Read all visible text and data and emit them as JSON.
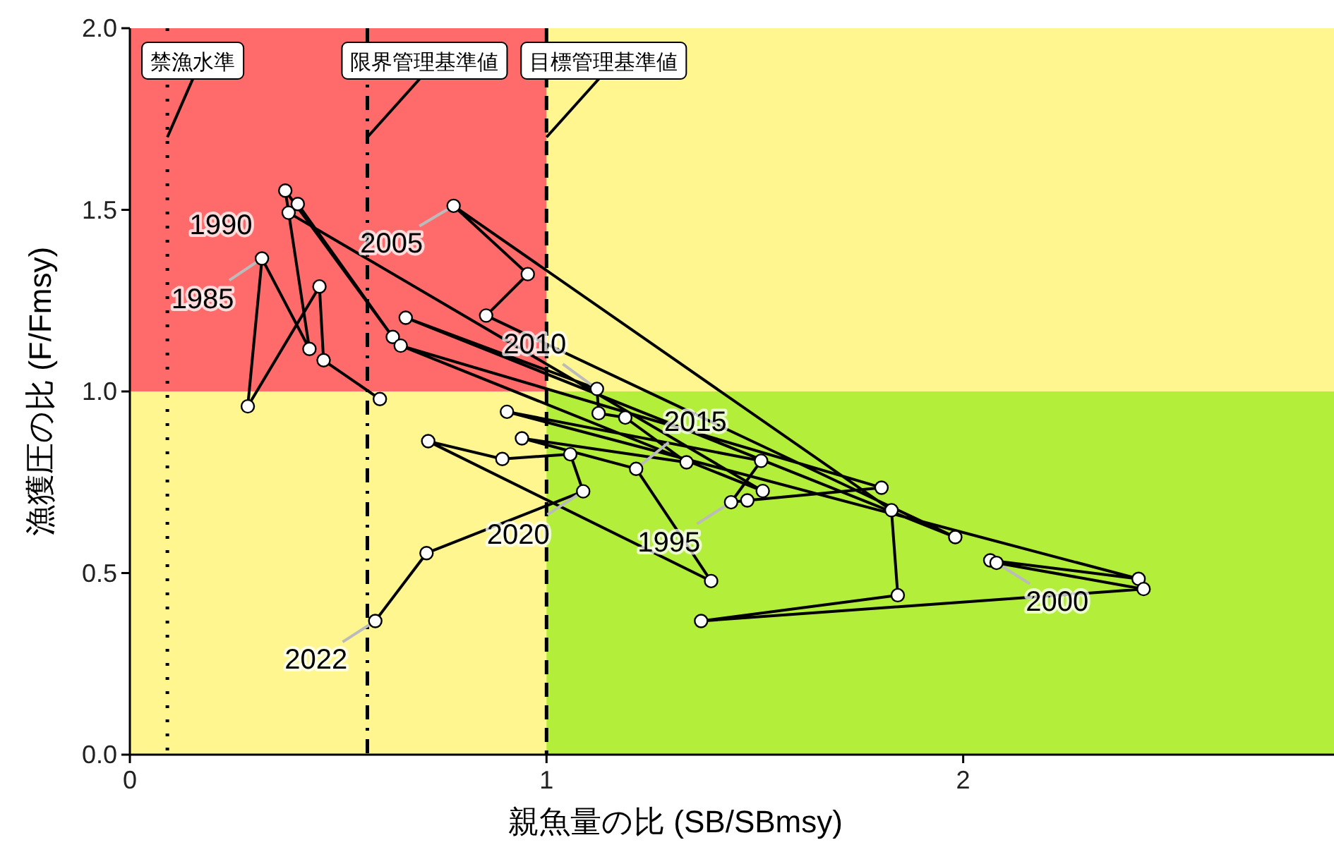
{
  "chart_data": {
    "type": "line",
    "xlabel": "親魚量の比 (SB/SBmsy)",
    "ylabel": "漁獲圧の比 (F/Fmsy)",
    "xlim": [
      0,
      2.89
    ],
    "xticks": [
      0,
      1,
      2
    ],
    "ylim": [
      0,
      2
    ],
    "yticks": [
      {
        "value": 0,
        "label": "0.0"
      },
      {
        "value": 0.5,
        "label": "0.5"
      },
      {
        "value": 1,
        "label": "1.0"
      },
      {
        "value": 1.5,
        "label": "1.5"
      },
      {
        "value": 2,
        "label": "2.0"
      }
    ],
    "grid": false,
    "marker": "circle",
    "line_style": "solid",
    "color": "#000000",
    "x": [
      0.6,
      0.465,
      0.455,
      0.283,
      0.317,
      0.431,
      0.373,
      0.631,
      0.403,
      0.381,
      1.519,
      0.65,
      1.804,
      1.482,
      1.443,
      1.515,
      0.905,
      2.421,
      2.065,
      2.08,
      2.433,
      1.371,
      1.843,
      1.828,
      0.777,
      0.955,
      0.855,
      1.981,
      0.662,
      1.121,
      1.125,
      1.189,
      1.336,
      0.941,
      1.215,
      1.395,
      0.716,
      0.894,
      1.057,
      1.088,
      0.712,
      0.589
    ],
    "values": [
      0.979,
      1.086,
      1.289,
      0.959,
      1.366,
      1.117,
      1.553,
      1.15,
      1.516,
      1.492,
      0.726,
      1.126,
      0.735,
      0.7,
      0.695,
      0.809,
      0.944,
      0.484,
      0.535,
      0.528,
      0.456,
      0.368,
      0.439,
      0.673,
      1.511,
      1.323,
      1.209,
      0.599,
      1.203,
      1.007,
      0.94,
      0.928,
      0.805,
      0.871,
      0.787,
      0.478,
      0.863,
      0.814,
      0.827,
      0.725,
      0.555,
      0.368
    ],
    "bands": [
      {
        "axis": "y",
        "from": 0,
        "to": 2,
        "color": "#fff68f"
      },
      {
        "axis": "x",
        "from": 0,
        "to": 1,
        "color": "#ff6a6a"
      },
      {
        "axis": "y",
        "from": 0,
        "to": 1,
        "color": "#b3ee3a"
      }
    ],
    "ref_lines": [
      {
        "axis": "x",
        "value": 0.09,
        "label": "禁漁水準",
        "line_style": "dotted"
      },
      {
        "axis": "x",
        "value": 0.57,
        "label": "限界管理基準値",
        "line_style": "dashdot"
      },
      {
        "axis": "x",
        "value": 1,
        "label": "目標管理基準値",
        "line_style": "dashed"
      }
    ],
    "annotations": [
      {
        "text": "1985",
        "x": 0.317,
        "y": 1.366
      },
      {
        "text": "1990",
        "x": 0.381,
        "y": 1.492
      },
      {
        "text": "1995",
        "x": 1.443,
        "y": 0.695
      },
      {
        "text": "2000",
        "x": 2.08,
        "y": 0.528
      },
      {
        "text": "2005",
        "x": 0.777,
        "y": 1.511
      },
      {
        "text": "2010",
        "x": 1.121,
        "y": 1.007
      },
      {
        "text": "2015",
        "x": 1.215,
        "y": 0.787
      },
      {
        "text": "2020",
        "x": 1.088,
        "y": 0.725
      },
      {
        "text": "2022",
        "x": 0.589,
        "y": 0.368
      }
    ]
  }
}
